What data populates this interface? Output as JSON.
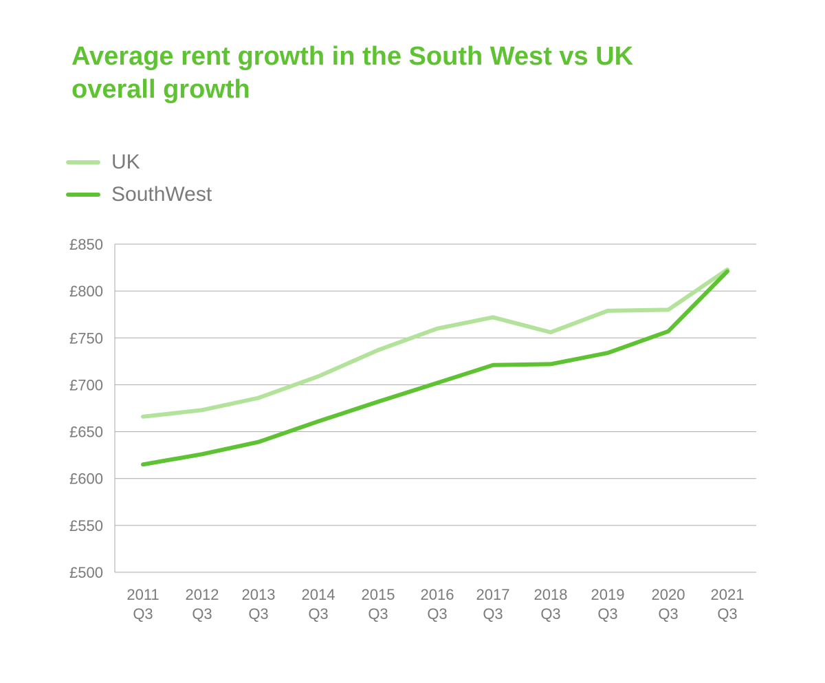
{
  "chart_data": {
    "type": "line",
    "title": "Average rent growth in the South West vs UK overall growth",
    "xlabel": "",
    "ylabel": "",
    "categories": [
      [
        "2011",
        "Q3"
      ],
      [
        "2012",
        "Q3"
      ],
      [
        "2013",
        "Q3"
      ],
      [
        "2014",
        "Q3"
      ],
      [
        "2015",
        "Q3"
      ],
      [
        "2016",
        "Q3"
      ],
      [
        "2017",
        "Q3"
      ],
      [
        "2018",
        "Q3"
      ],
      [
        "2019",
        "Q3"
      ],
      [
        "2020",
        "Q3"
      ],
      [
        "2021",
        "Q3"
      ]
    ],
    "series": [
      {
        "name": "UK",
        "color": "#b3e39b",
        "values": [
          666,
          673,
          686,
          709,
          737,
          760,
          772,
          756,
          779,
          780,
          823
        ]
      },
      {
        "name": "SouthWest",
        "color": "#5ec232",
        "values": [
          615,
          626,
          639,
          661,
          682,
          702,
          721,
          722,
          734,
          757,
          821
        ]
      }
    ],
    "ylim": [
      500,
      850
    ],
    "yticks": [
      500,
      550,
      600,
      650,
      700,
      750,
      800,
      850
    ],
    "ytick_labels": [
      "£500",
      "£550",
      "£600",
      "£650",
      "£700",
      "£750",
      "£800",
      "£850"
    ],
    "grid": true,
    "legend_position": "top-left"
  }
}
